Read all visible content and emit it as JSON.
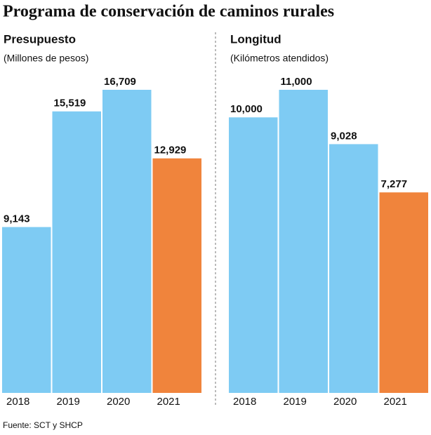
{
  "title": "Programa de conservación de caminos rurales",
  "source": "Fuente: SCT y SHCP",
  "chart_data": [
    {
      "type": "bar",
      "title": "Presupuesto",
      "subtitle": "(Millones de pesos)",
      "categories": [
        "2018",
        "2019",
        "2020",
        "2021"
      ],
      "values": [
        9143,
        15519,
        16709,
        12929
      ],
      "value_labels": [
        "9,143",
        "15,519",
        "16,709",
        "12,929"
      ],
      "colors": [
        "#7ecbf3",
        "#7ecbf3",
        "#7ecbf3",
        "#f0843c"
      ]
    },
    {
      "type": "bar",
      "title": "Longitud",
      "subtitle": "(Kilómetros atendidos)",
      "categories": [
        "2018",
        "2019",
        "2020",
        "2021"
      ],
      "values": [
        10000,
        11000,
        9028,
        7277
      ],
      "value_labels": [
        "10,000",
        "11,000",
        "9,028",
        "7,277"
      ],
      "colors": [
        "#7ecbf3",
        "#7ecbf3",
        "#7ecbf3",
        "#f0843c"
      ]
    }
  ]
}
